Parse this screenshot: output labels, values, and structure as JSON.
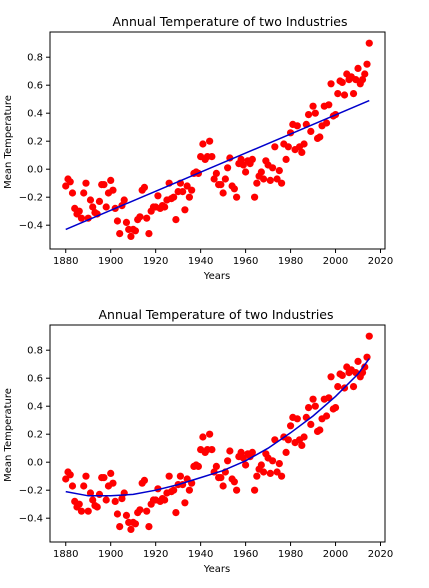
{
  "chart_data": [
    {
      "type": "scatter",
      "title": "Annual Temperature of two Industries",
      "xlabel": "Years",
      "ylabel": "Mean Temperature",
      "xlim": [
        1873,
        2022
      ],
      "ylim": [
        -0.57,
        0.98
      ],
      "xticks": [
        1880,
        1900,
        1920,
        1940,
        1960,
        1980,
        2000,
        2020
      ],
      "yticks": [
        -0.4,
        -0.2,
        0.0,
        0.2,
        0.4,
        0.6,
        0.8
      ],
      "ytick_labels": [
        "−0.4",
        "−0.2",
        "0.0",
        "0.2",
        "0.4",
        "0.6",
        "0.8"
      ],
      "grid": false,
      "point_color": "#ff0000",
      "fit_color": "#0000cc",
      "fit": {
        "kind": "linear",
        "x": [
          1880,
          2015
        ],
        "y": [
          -0.43,
          0.49
        ]
      }
    },
    {
      "type": "scatter",
      "title": "Annual Temperature of two Industries",
      "xlabel": "Years",
      "ylabel": "Mean Temperature",
      "xlim": [
        1873,
        2022
      ],
      "ylim": [
        -0.57,
        0.98
      ],
      "xticks": [
        1880,
        1900,
        1920,
        1940,
        1960,
        1980,
        2000,
        2020
      ],
      "yticks": [
        -0.4,
        -0.2,
        0.0,
        0.2,
        0.4,
        0.6,
        0.8
      ],
      "ytick_labels": [
        "−0.4",
        "−0.2",
        "0.0",
        "0.2",
        "0.4",
        "0.6",
        "0.8"
      ],
      "grid": false,
      "point_color": "#ff0000",
      "fit_color": "#0000cc",
      "fit": {
        "kind": "quadratic",
        "x": [
          1880,
          1890,
          1900,
          1910,
          1920,
          1930,
          1940,
          1950,
          1960,
          1970,
          1980,
          1990,
          2000,
          2010,
          2015
        ],
        "y": [
          -0.21,
          -0.24,
          -0.24,
          -0.23,
          -0.2,
          -0.16,
          -0.11,
          -0.06,
          0.01,
          0.1,
          0.21,
          0.33,
          0.47,
          0.63,
          0.74
        ]
      }
    }
  ],
  "series_points": {
    "x": [
      1880,
      1881,
      1882,
      1883,
      1884,
      1885,
      1886,
      1887,
      1888,
      1889,
      1890,
      1891,
      1892,
      1893,
      1894,
      1895,
      1896,
      1897,
      1898,
      1899,
      1900,
      1901,
      1902,
      1903,
      1904,
      1905,
      1906,
      1907,
      1908,
      1909,
      1910,
      1911,
      1912,
      1913,
      1914,
      1915,
      1916,
      1917,
      1918,
      1919,
      1920,
      1921,
      1922,
      1923,
      1924,
      1925,
      1926,
      1927,
      1928,
      1929,
      1930,
      1931,
      1932,
      1933,
      1934,
      1935,
      1936,
      1937,
      1938,
      1939,
      1940,
      1941,
      1942,
      1943,
      1944,
      1945,
      1946,
      1947,
      1948,
      1949,
      1950,
      1951,
      1952,
      1953,
      1954,
      1955,
      1956,
      1957,
      1958,
      1959,
      1960,
      1961,
      1962,
      1963,
      1964,
      1965,
      1966,
      1967,
      1968,
      1969,
      1970,
      1971,
      1972,
      1973,
      1974,
      1975,
      1976,
      1977,
      1978,
      1979,
      1980,
      1981,
      1982,
      1983,
      1984,
      1985,
      1986,
      1987,
      1988,
      1989,
      1990,
      1991,
      1992,
      1993,
      1994,
      1995,
      1996,
      1997,
      1998,
      1999,
      2000,
      2001,
      2002,
      2003,
      2004,
      2005,
      2006,
      2007,
      2008,
      2009,
      2010,
      2011,
      2012,
      2013,
      2014,
      2015
    ],
    "y": [
      -0.12,
      -0.07,
      -0.09,
      -0.17,
      -0.28,
      -0.32,
      -0.3,
      -0.35,
      -0.17,
      -0.1,
      -0.35,
      -0.22,
      -0.27,
      -0.31,
      -0.32,
      -0.23,
      -0.11,
      -0.11,
      -0.27,
      -0.17,
      -0.08,
      -0.15,
      -0.28,
      -0.37,
      -0.46,
      -0.26,
      -0.22,
      -0.38,
      -0.43,
      -0.48,
      -0.43,
      -0.44,
      -0.36,
      -0.34,
      -0.15,
      -0.13,
      -0.35,
      -0.46,
      -0.3,
      -0.27,
      -0.27,
      -0.19,
      -0.28,
      -0.26,
      -0.27,
      -0.22,
      -0.1,
      -0.21,
      -0.2,
      -0.36,
      -0.16,
      -0.1,
      -0.16,
      -0.29,
      -0.12,
      -0.2,
      -0.15,
      -0.03,
      -0.02,
      -0.03,
      0.09,
      0.18,
      0.07,
      0.09,
      0.2,
      0.09,
      -0.07,
      -0.03,
      -0.11,
      -0.11,
      -0.17,
      -0.07,
      0.01,
      0.08,
      -0.12,
      -0.14,
      -0.2,
      0.04,
      0.07,
      0.03,
      -0.02,
      0.06,
      0.04,
      0.07,
      -0.2,
      -0.1,
      -0.05,
      -0.02,
      -0.07,
      0.06,
      0.03,
      -0.08,
      0.01,
      0.16,
      -0.07,
      -0.01,
      -0.1,
      0.18,
      0.07,
      0.16,
      0.26,
      0.32,
      0.14,
      0.31,
      0.16,
      0.12,
      0.18,
      0.32,
      0.39,
      0.27,
      0.45,
      0.4,
      0.22,
      0.23,
      0.31,
      0.45,
      0.33,
      0.46,
      0.61,
      0.38,
      0.39,
      0.54,
      0.63,
      0.62,
      0.53,
      0.68,
      0.64,
      0.66,
      0.54,
      0.64,
      0.72,
      0.61,
      0.64,
      0.68,
      0.75,
      0.9
    ]
  }
}
